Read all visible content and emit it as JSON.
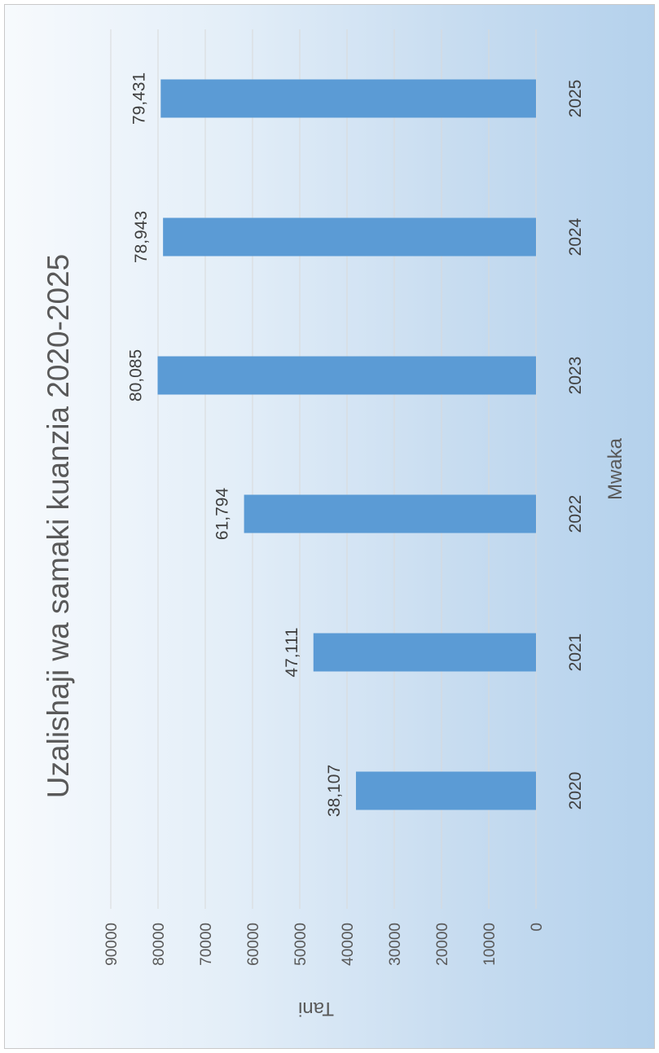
{
  "chart_data": {
    "type": "bar",
    "title": "Uzalishaji wa samaki kuanzia 2020-2025",
    "xlabel": "Mwaka",
    "ylabel": "Tani",
    "categories": [
      "2020",
      "2021",
      "2022",
      "2023",
      "2024",
      "2025"
    ],
    "values": [
      38107,
      47111,
      61794,
      80085,
      78943,
      79431
    ],
    "data_labels": [
      "38,107",
      "47,111",
      "61,794",
      "80,085",
      "78,943",
      "79,431"
    ],
    "ylim": [
      0,
      90000
    ],
    "yticks": [
      "0",
      "10000",
      "20000",
      "30000",
      "40000",
      "50000",
      "60000",
      "70000",
      "80000",
      "90000"
    ],
    "grid": true,
    "orientation": "rotated 90 degrees clockwise",
    "colors": {
      "bar": "#5b9bd5",
      "grid": "#d9d9d9",
      "text": "#595959"
    }
  }
}
